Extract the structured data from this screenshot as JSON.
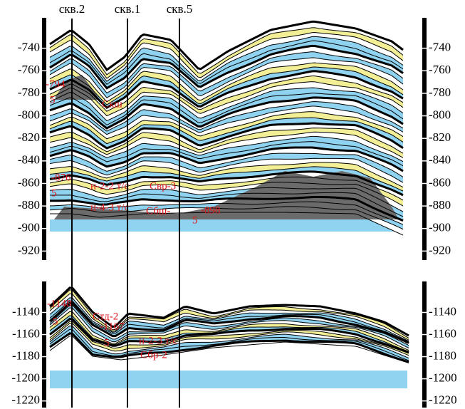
{
  "wells": [
    "скв.2",
    "скв.1",
    "скв.5"
  ],
  "panels": [
    {
      "ylim": [
        -928,
        -713
      ],
      "yticks": [
        -740,
        -760,
        -780,
        -800,
        -820,
        -840,
        -860,
        -880,
        -900,
        -920
      ],
      "annotations": [
        "-794",
        "5",
        "Скш",
        "-876",
        "5",
        "н-2-2 т/с",
        "Свр-3",
        "н-4-3 т/с",
        "Сбш-",
        "5",
        "-898"
      ]
    },
    {
      "ylim": [
        -1226,
        -1112
      ],
      "yticks": [
        -1140,
        -1160,
        -1180,
        -1200,
        -1220
      ],
      "annotations": [
        "-1148",
        "5",
        "Стд-2",
        "-1167",
        "5",
        "н-2-3 т/с",
        "Сбр-2"
      ]
    }
  ]
}
